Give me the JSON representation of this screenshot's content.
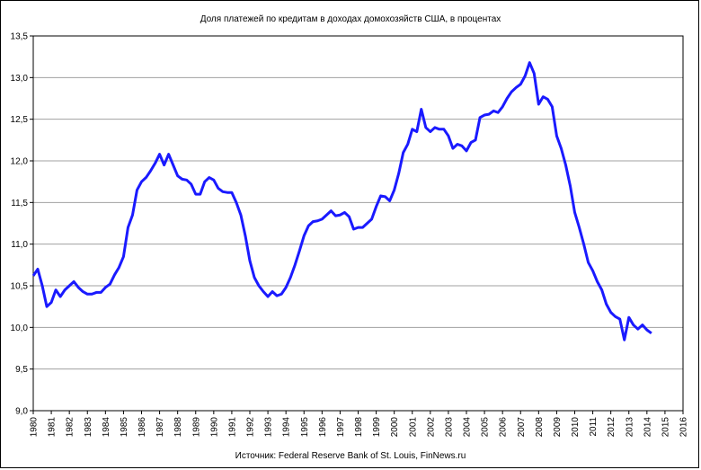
{
  "chart_data": {
    "type": "line",
    "title": "Доля платежей по кредитам в доходах домохозяйств США, в процентах",
    "source": "Источник: Federal Reserve Bank of St. Louis, FinNews.ru",
    "color": "#1a1aff",
    "grid": true,
    "x": [
      1980,
      1980.25,
      1980.5,
      1980.75,
      1981,
      1981.25,
      1981.5,
      1981.75,
      1982,
      1982.25,
      1982.5,
      1982.75,
      1983,
      1983.25,
      1983.5,
      1983.75,
      1984,
      1984.25,
      1984.5,
      1984.75,
      1985,
      1985.25,
      1985.5,
      1985.75,
      1986,
      1986.25,
      1986.5,
      1986.75,
      1987,
      1987.25,
      1987.5,
      1987.75,
      1988,
      1988.25,
      1988.5,
      1988.75,
      1989,
      1989.25,
      1989.5,
      1989.75,
      1990,
      1990.25,
      1990.5,
      1990.75,
      1991,
      1991.25,
      1991.5,
      1991.75,
      1992,
      1992.25,
      1992.5,
      1992.75,
      1993,
      1993.25,
      1993.5,
      1993.75,
      1994,
      1994.25,
      1994.5,
      1994.75,
      1995,
      1995.25,
      1995.5,
      1995.75,
      1996,
      1996.25,
      1996.5,
      1996.75,
      1997,
      1997.25,
      1997.5,
      1997.75,
      1998,
      1998.25,
      1998.5,
      1998.75,
      1999,
      1999.25,
      1999.5,
      1999.75,
      2000,
      2000.25,
      2000.5,
      2000.75,
      2001,
      2001.25,
      2001.5,
      2001.75,
      2002,
      2002.25,
      2002.5,
      2002.75,
      2003,
      2003.25,
      2003.5,
      2003.75,
      2004,
      2004.25,
      2004.5,
      2004.75,
      2005,
      2005.25,
      2005.5,
      2005.75,
      2006,
      2006.25,
      2006.5,
      2006.75,
      2007,
      2007.25,
      2007.5,
      2007.75,
      2008,
      2008.25,
      2008.5,
      2008.75,
      2009,
      2009.25,
      2009.5,
      2009.75,
      2010,
      2010.25,
      2010.5,
      2010.75,
      2011,
      2011.25,
      2011.5,
      2011.75,
      2012,
      2012.25,
      2012.5,
      2012.75,
      2013,
      2013.25,
      2013.5,
      2013.75,
      2014,
      2014.25
    ],
    "values": [
      10.62,
      10.7,
      10.5,
      10.25,
      10.3,
      10.45,
      10.37,
      10.45,
      10.5,
      10.55,
      10.48,
      10.43,
      10.4,
      10.4,
      10.42,
      10.42,
      10.48,
      10.52,
      10.63,
      10.72,
      10.85,
      11.2,
      11.35,
      11.65,
      11.75,
      11.8,
      11.88,
      11.97,
      12.08,
      11.95,
      12.08,
      11.95,
      11.82,
      11.78,
      11.77,
      11.72,
      11.6,
      11.6,
      11.75,
      11.8,
      11.77,
      11.67,
      11.63,
      11.62,
      11.62,
      11.5,
      11.35,
      11.1,
      10.8,
      10.6,
      10.5,
      10.43,
      10.37,
      10.43,
      10.38,
      10.4,
      10.48,
      10.6,
      10.75,
      10.92,
      11.1,
      11.22,
      11.27,
      11.28,
      11.3,
      11.35,
      11.4,
      11.34,
      11.35,
      11.38,
      11.33,
      11.18,
      11.2,
      11.2,
      11.25,
      11.3,
      11.45,
      11.58,
      11.57,
      11.52,
      11.65,
      11.85,
      12.1,
      12.2,
      12.38,
      12.35,
      12.62,
      12.4,
      12.35,
      12.4,
      12.38,
      12.38,
      12.3,
      12.15,
      12.2,
      12.18,
      12.12,
      12.22,
      12.25,
      12.52,
      12.55,
      12.56,
      12.6,
      12.58,
      12.65,
      12.75,
      12.83,
      12.88,
      12.92,
      13.02,
      13.18,
      13.05,
      12.68,
      12.77,
      12.74,
      12.65,
      12.3,
      12.15,
      11.95,
      11.7,
      11.38,
      11.2,
      11.0,
      10.78,
      10.68,
      10.55,
      10.45,
      10.28,
      10.18,
      10.13,
      10.1,
      9.85,
      10.12,
      10.03,
      9.98,
      10.03,
      9.97,
      9.93
    ],
    "xlim": [
      1980,
      2016
    ],
    "xticks": [
      1980,
      1981,
      1982,
      1983,
      1984,
      1985,
      1986,
      1987,
      1988,
      1989,
      1990,
      1991,
      1992,
      1993,
      1994,
      1995,
      1996,
      1997,
      1998,
      1999,
      2000,
      2001,
      2002,
      2003,
      2004,
      2005,
      2006,
      2007,
      2008,
      2009,
      2010,
      2011,
      2012,
      2013,
      2014,
      2015,
      2016
    ],
    "ylim": [
      9,
      13.5
    ],
    "yticks": [
      {
        "value": 9,
        "label": "9,0"
      },
      {
        "value": 9.5,
        "label": "9,5"
      },
      {
        "value": 10,
        "label": "10,0"
      },
      {
        "value": 10.5,
        "label": "10,5"
      },
      {
        "value": 11,
        "label": "11,0"
      },
      {
        "value": 11.5,
        "label": "11,5"
      },
      {
        "value": 12,
        "label": "12,0"
      },
      {
        "value": 12.5,
        "label": "12,5"
      },
      {
        "value": 13,
        "label": "13,0"
      },
      {
        "value": 13.5,
        "label": "13,5"
      }
    ]
  }
}
